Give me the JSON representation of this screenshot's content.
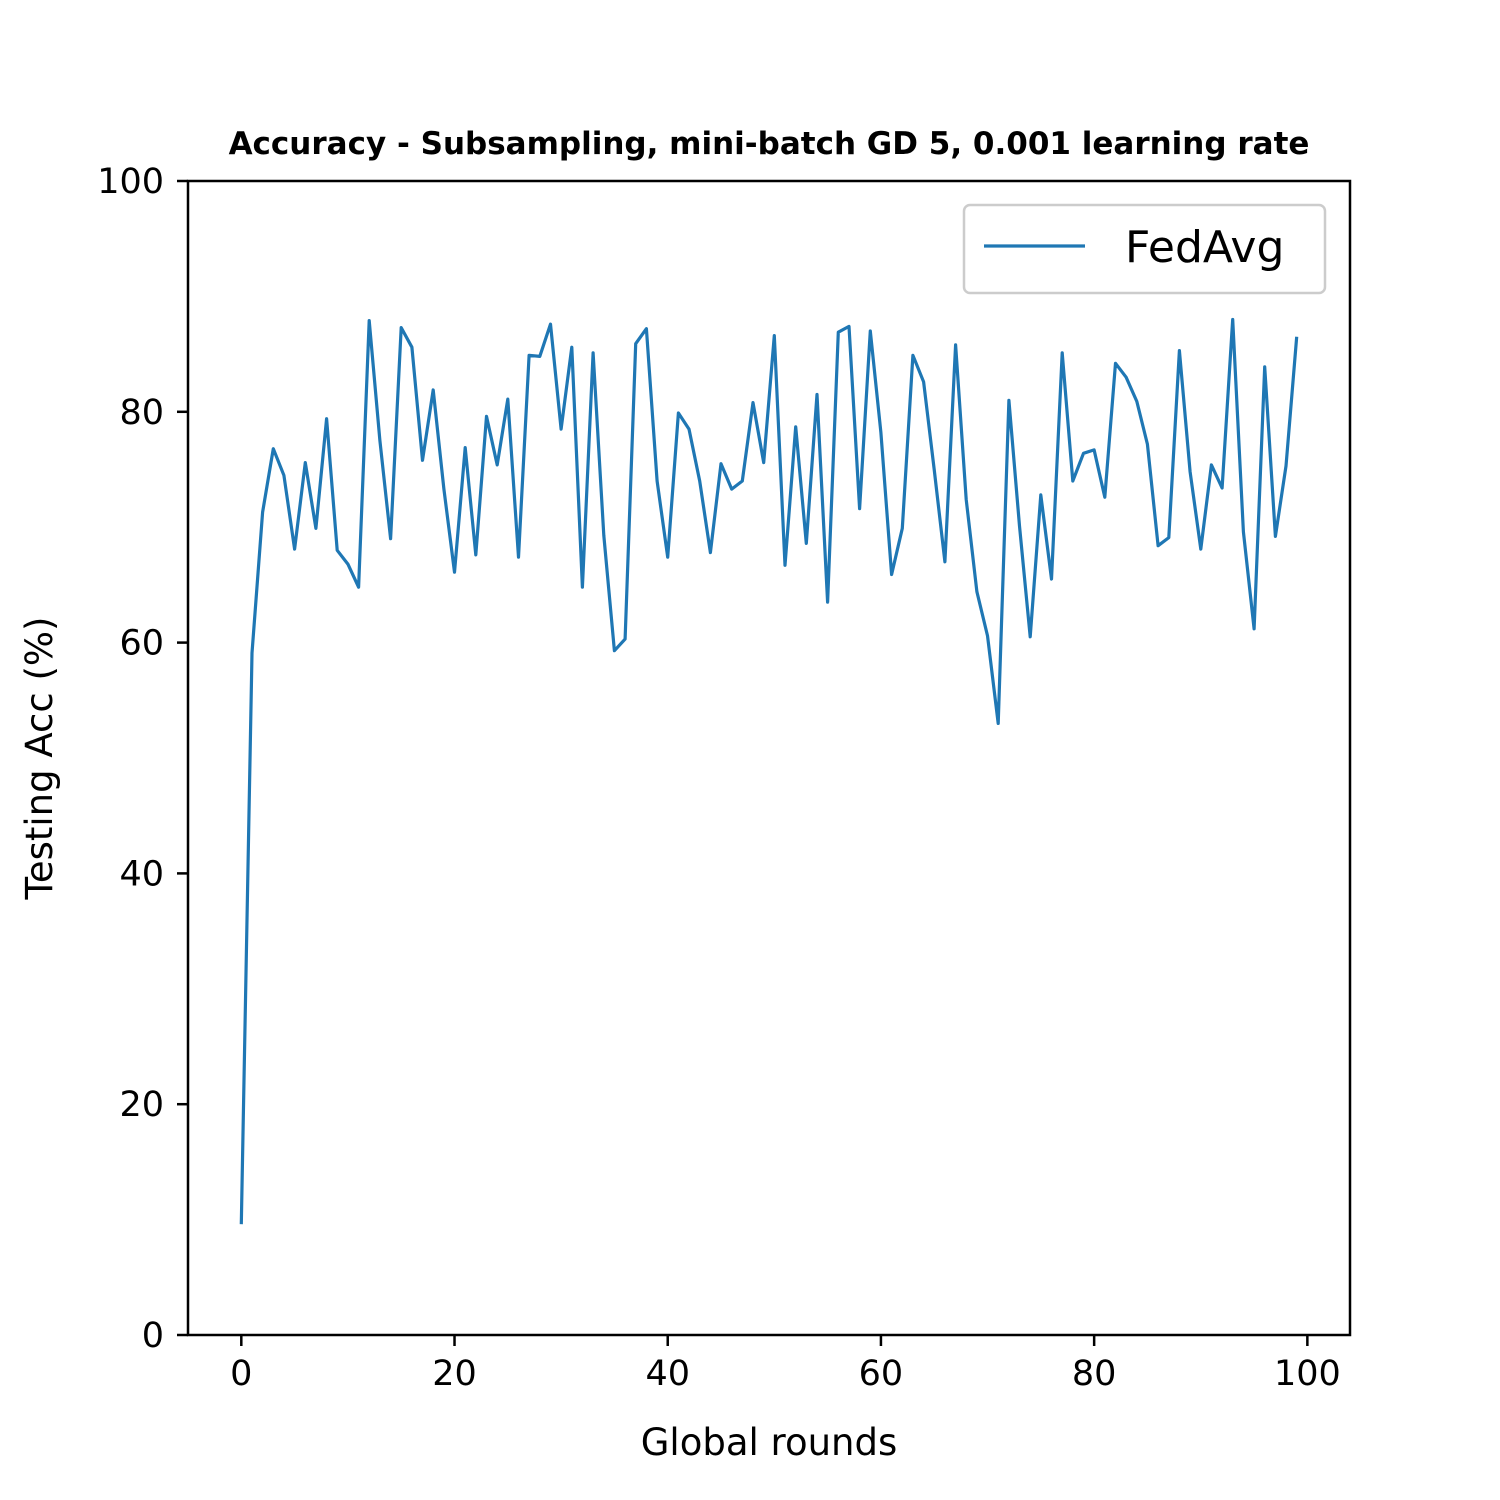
{
  "chart_data": {
    "type": "line",
    "title": "Accuracy - Subsampling, mini-batch GD 5, 0.001 learning rate",
    "xlabel": "Global rounds",
    "ylabel": "Testing Acc (%)",
    "xlim": [
      -5,
      104
    ],
    "ylim": [
      0,
      100
    ],
    "xticks": [
      0,
      20,
      40,
      60,
      80,
      100
    ],
    "yticks": [
      0,
      20,
      40,
      60,
      80,
      100
    ],
    "grid": false,
    "legend_position": "top-right",
    "series": [
      {
        "name": "FedAvg",
        "color": "#1f77b4",
        "x": [
          0,
          1,
          2,
          3,
          4,
          5,
          6,
          7,
          8,
          9,
          10,
          11,
          12,
          13,
          14,
          15,
          16,
          17,
          18,
          19,
          20,
          21,
          22,
          23,
          24,
          25,
          26,
          27,
          28,
          29,
          30,
          31,
          32,
          33,
          34,
          35,
          36,
          37,
          38,
          39,
          40,
          41,
          42,
          43,
          44,
          45,
          46,
          47,
          48,
          49,
          50,
          51,
          52,
          53,
          54,
          55,
          56,
          57,
          58,
          59,
          60,
          61,
          62,
          63,
          64,
          65,
          66,
          67,
          68,
          69,
          70,
          71,
          72,
          73,
          74,
          75,
          76,
          77,
          78,
          79,
          80,
          81,
          82,
          83,
          84,
          85,
          86,
          87,
          88,
          89,
          90,
          91,
          92,
          93,
          94,
          95,
          96,
          97,
          98,
          99
        ],
        "y": [
          9.6,
          59.1,
          71.3,
          76.8,
          74.5,
          68.1,
          75.6,
          69.9,
          79.4,
          68.0,
          66.8,
          64.8,
          87.9,
          77.5,
          69.0,
          87.3,
          85.6,
          75.8,
          81.9,
          73.3,
          66.1,
          76.9,
          67.6,
          79.6,
          75.4,
          81.1,
          67.4,
          84.9,
          84.8,
          87.6,
          78.5,
          85.6,
          64.8,
          85.1,
          69.3,
          59.3,
          60.3,
          85.9,
          87.2,
          74.0,
          67.4,
          79.9,
          78.5,
          74.0,
          67.8,
          75.5,
          73.3,
          74.0,
          80.8,
          75.6,
          86.6,
          66.7,
          78.7,
          68.6,
          81.5,
          63.5,
          86.9,
          87.4,
          71.6,
          87.0,
          78.2,
          65.9,
          69.9,
          84.9,
          82.6,
          75.0,
          67.0,
          85.8,
          72.4,
          64.4,
          60.6,
          53.0,
          81.0,
          70.1,
          60.5,
          72.8,
          65.5,
          85.1,
          74.0,
          76.4,
          76.7,
          72.6,
          84.2,
          83.0,
          80.9,
          77.2,
          68.4,
          69.1,
          85.3,
          74.8,
          68.1,
          75.4,
          73.4,
          88.0,
          69.6,
          61.2,
          83.9,
          69.2,
          75.3,
          86.5
        ]
      }
    ]
  }
}
